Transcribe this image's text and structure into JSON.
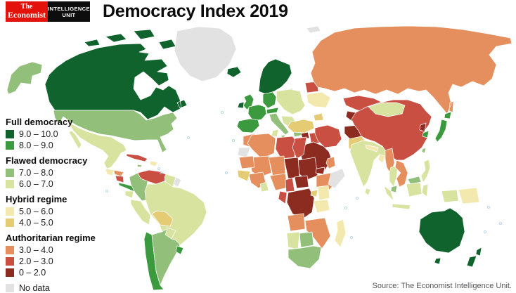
{
  "header": {
    "logo": {
      "line1": "The",
      "line2": "Economist",
      "bg": "#e3120b"
    },
    "unit": {
      "line1": "INTELLIGENCE",
      "line2": "UNIT",
      "bg": "#0d0d0d"
    },
    "title": "Democracy Index 2019"
  },
  "source": "Source: The Economist Intelligence Unit.",
  "legend": {
    "groups": [
      {
        "label": "Full democracy",
        "items": [
          {
            "key": "9_10",
            "range": "9.0 – 10.0",
            "color": "#10632c"
          },
          {
            "key": "8_9",
            "range": "8.0 – 9.0",
            "color": "#3a9a3d"
          }
        ]
      },
      {
        "label": "Flawed democracy",
        "items": [
          {
            "key": "7_8",
            "range": "7.0 – 8.0",
            "color": "#92bf7a"
          },
          {
            "key": "6_7",
            "range": "6.0 – 7.0",
            "color": "#d8e3a0"
          }
        ]
      },
      {
        "label": "Hybrid regime",
        "items": [
          {
            "key": "5_6",
            "range": "5.0 – 6.0",
            "color": "#f3e9af"
          },
          {
            "key": "4_5",
            "range": "4.0 – 5.0",
            "color": "#e5cc74"
          }
        ]
      },
      {
        "label": "Authoritarian regime",
        "items": [
          {
            "key": "3_4",
            "range": "3.0 – 4.0",
            "color": "#e58f5e"
          },
          {
            "key": "2_3",
            "range": "2.0 – 3.0",
            "color": "#c94f43"
          },
          {
            "key": "0_2",
            "range": "0 – 2.0",
            "color": "#8c2b20"
          }
        ]
      }
    ],
    "no_data": {
      "key": "no_data",
      "label": "No data",
      "color": "#e2e2e2"
    }
  },
  "map": {
    "region_categories": {
      "greenland": "no_data",
      "svalbard": "no_data",
      "iceland": "9_10",
      "canada": "9_10",
      "alaska": "7_8",
      "usa": "7_8",
      "mexico": "6_7",
      "guatemala": "5_6",
      "honduras": "3_4",
      "nicaragua": "2_3",
      "costa_rica_panama": "8_9",
      "cuba": "2_3",
      "hispaniola": "5_6",
      "jamaica": "7_8",
      "venezuela": "2_3",
      "colombia": "7_8",
      "guyana_suriname": "6_7",
      "french_guiana": "no_data",
      "ecuador": "6_7",
      "peru": "6_7",
      "brazil": "6_7",
      "bolivia": "4_5",
      "paraguay": "6_7",
      "chile": "8_9",
      "argentina": "7_8",
      "uruguay": "8_9",
      "uk": "8_9",
      "ireland": "9_10",
      "scandinavia": "9_10",
      "denmark": "9_10",
      "baltics": "7_8",
      "germany_benelux": "8_9",
      "france": "8_9",
      "iberia": "8_9",
      "switzerland_austria": "8_9",
      "italy": "7_8",
      "central_europe": "6_7",
      "balkans": "6_7",
      "greece": "7_8",
      "belarus": "2_3",
      "ukraine": "5_6",
      "russia": "3_4",
      "kazakhstan": "2_3",
      "central_asia": "0_2",
      "caucasus": "4_5",
      "turkey": "4_5",
      "syria": "0_2",
      "iraq": "2_3",
      "iran": "2_3",
      "israel": "7_8",
      "saudi_peninsula": "0_2",
      "oman_uae": "3_4",
      "afghanistan": "0_2",
      "pakistan": "4_5",
      "india": "6_7",
      "nepal_bhutan": "5_6",
      "bangladesh": "5_6",
      "sri_lanka": "6_7",
      "myanmar": "3_4",
      "thailand": "6_7",
      "indochina": "3_4",
      "china": "2_3",
      "mongolia": "6_7",
      "north_korea": "0_2",
      "south_korea": "8_9",
      "japan": "8_9",
      "taiwan": "7_8",
      "philippines": "6_7",
      "malaysia": "7_8",
      "indonesia": "6_7",
      "papua_new_guinea": "5_6",
      "australia": "9_10",
      "new_zealand": "9_10",
      "morocco": "3_4",
      "western_sahara": "no_data",
      "algeria": "3_4",
      "tunisia": "6_7",
      "libya": "2_3",
      "egypt": "2_3",
      "mauritania": "3_4",
      "mali": "3_4",
      "niger": "3_4",
      "chad": "0_2",
      "sudan": "0_2",
      "eritrea": "0_2",
      "ethiopia": "3_4",
      "somalia": "no_data",
      "senegal_guinea": "4_5",
      "ivory_burkina": "3_4",
      "ghana": "6_7",
      "nigeria": "3_4",
      "cameroon": "2_3",
      "central_african_republic": "0_2",
      "drc": "0_2",
      "congo_gabon": "2_3",
      "uganda": "4_5",
      "kenya": "5_6",
      "tanzania": "5_6",
      "angola": "3_4",
      "zambia_zimbabwe_mozambique": "3_4",
      "namibia": "6_7",
      "botswana": "7_8",
      "south_africa": "7_8",
      "madagascar": "5_6"
    }
  }
}
